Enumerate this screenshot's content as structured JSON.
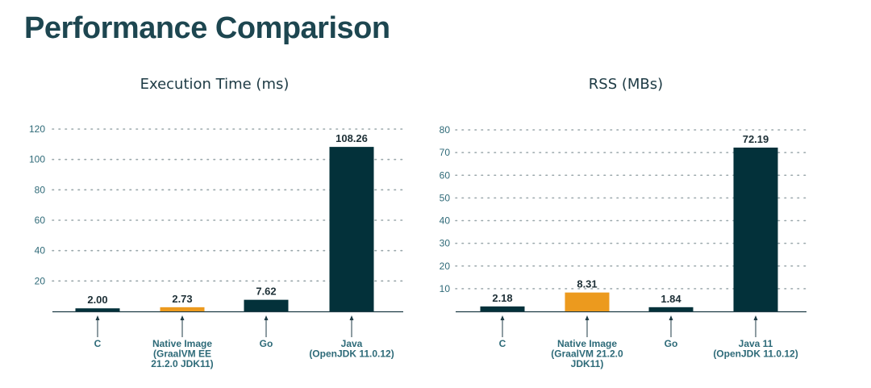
{
  "page": {
    "title": "Performance Comparison"
  },
  "colors": {
    "dark": "#03313a",
    "accent": "#ec9a1e",
    "grid": "#9aa7ab",
    "tick": "#2f6a78"
  },
  "chart_data": [
    {
      "type": "bar",
      "title": "Execution Time (ms)",
      "categories": [
        [
          "C"
        ],
        [
          "Native Image",
          "(GraalVM EE",
          "21.2.0 JDK11)"
        ],
        [
          "Go"
        ],
        [
          "Java",
          "(OpenJDK 11.0.12)"
        ]
      ],
      "values": [
        2.0,
        2.73,
        7.62,
        108.26
      ],
      "value_labels": [
        "2.00",
        "2.73",
        "7.62",
        "108.26"
      ],
      "bar_colors": [
        "dark",
        "accent",
        "dark",
        "dark"
      ],
      "yticks": [
        20,
        40,
        60,
        80,
        100,
        120
      ],
      "ylim": [
        0,
        120
      ],
      "grid": true
    },
    {
      "type": "bar",
      "title": "RSS (MBs)",
      "categories": [
        [
          "C"
        ],
        [
          "Native Image",
          "(GraalVM 21.2.0",
          "JDK11)"
        ],
        [
          "Go"
        ],
        [
          "Java 11",
          "(OpenJDK 11.0.12)"
        ]
      ],
      "values": [
        2.18,
        8.31,
        1.84,
        72.19
      ],
      "value_labels": [
        "2.18",
        "8.31",
        "1.84",
        "72.19"
      ],
      "bar_colors": [
        "dark",
        "accent",
        "dark",
        "dark"
      ],
      "yticks": [
        10,
        20,
        30,
        40,
        50,
        60,
        70,
        80
      ],
      "ylim": [
        0,
        80
      ],
      "grid": true
    }
  ]
}
